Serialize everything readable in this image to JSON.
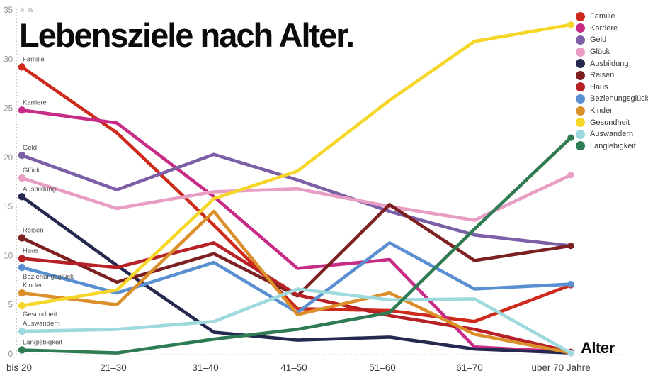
{
  "title": "Lebensziele nach Alter.",
  "x_axis_label": "Alter",
  "chart_data": {
    "type": "line",
    "title": "Lebensziele nach Alter.",
    "xlabel": "Alter",
    "ylabel": "in %",
    "ylim": [
      0,
      35
    ],
    "yticks": [
      0,
      5,
      10,
      15,
      20,
      25,
      30,
      35
    ],
    "grid": "dotted left axis and dotted baseline only",
    "legend_position": "top-right",
    "categories": [
      "bis 20",
      "21–30",
      "31–40",
      "41–50",
      "51–60",
      "61–70",
      "über 70 Jahre"
    ],
    "series": [
      {
        "name": "Familie",
        "color": "#ce2a1c",
        "values": [
          29.2,
          22.5,
          13.1,
          4.6,
          4.4,
          3.3,
          7.0
        ]
      },
      {
        "name": "Karriere",
        "color": "#c82b85",
        "values": [
          24.8,
          23.5,
          16.0,
          8.7,
          9.6,
          0.7,
          0.2
        ]
      },
      {
        "name": "Geld",
        "color": "#7c5fa6",
        "values": [
          20.2,
          16.7,
          20.3,
          17.7,
          14.5,
          12.1,
          11.0
        ]
      },
      {
        "name": "Glück",
        "color": "#e89dc5",
        "values": [
          17.9,
          14.8,
          16.5,
          16.8,
          15.0,
          13.6,
          18.2
        ]
      },
      {
        "name": "Ausbildung",
        "color": "#25294f",
        "values": [
          16.0,
          9.0,
          2.2,
          1.4,
          1.7,
          0.5,
          0.1
        ]
      },
      {
        "name": "Reisen",
        "color": "#7d2022",
        "values": [
          11.8,
          7.3,
          10.2,
          5.9,
          15.2,
          9.5,
          11.0
        ]
      },
      {
        "name": "Haus",
        "color": "#b72025",
        "values": [
          9.7,
          8.8,
          11.3,
          6.0,
          3.9,
          2.5,
          0.2
        ]
      },
      {
        "name": "Beziehungsglück",
        "color": "#5a90d1",
        "values": [
          8.8,
          6.2,
          9.3,
          4.2,
          11.3,
          6.6,
          7.1
        ]
      },
      {
        "name": "Kinder",
        "color": "#da8f2b",
        "values": [
          6.2,
          5.0,
          14.5,
          4.0,
          6.2,
          2.0,
          0.1
        ]
      },
      {
        "name": "Gesundheit",
        "color": "#f6d629",
        "values": [
          4.9,
          6.5,
          15.8,
          18.6,
          25.8,
          31.8,
          33.5
        ]
      },
      {
        "name": "Auswandern",
        "color": "#9ed9dd",
        "values": [
          2.3,
          2.5,
          3.3,
          6.6,
          5.5,
          5.6,
          0.1
        ]
      },
      {
        "name": "Langlebigkeit",
        "color": "#2f7b52",
        "values": [
          0.4,
          0.1,
          1.5,
          2.5,
          4.2,
          12.7,
          22.0
        ]
      }
    ]
  }
}
